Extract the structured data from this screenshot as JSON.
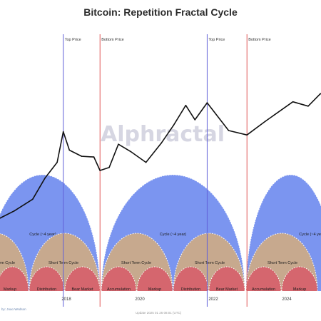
{
  "chart_data": {
    "type": "line",
    "title": "Bitcoin: Repetition Fractal Cycle",
    "x_ticks": [
      "2018",
      "2020",
      "2022",
      "2024"
    ],
    "log_scale": true,
    "grid": false,
    "price_series": {
      "x": [
        "2016-02",
        "2016-08",
        "2017-02",
        "2017-06",
        "2017-10",
        "2017-12",
        "2018-02",
        "2018-06",
        "2018-10",
        "2018-12",
        "2019-03",
        "2019-06",
        "2019-10",
        "2020-03",
        "2020-08",
        "2020-12",
        "2021-04",
        "2021-07",
        "2021-11",
        "2022-06",
        "2022-12",
        "2023-06",
        "2024-03",
        "2024-08",
        "2024-12",
        "2025-03"
      ],
      "y": [
        400,
        600,
        1000,
        2500,
        5000,
        19000,
        8500,
        6500,
        6300,
        3500,
        4000,
        11000,
        8000,
        5000,
        11500,
        25000,
        60000,
        32000,
        67000,
        20000,
        16500,
        30000,
        70000,
        58000,
        100000,
        85000
      ]
    },
    "vertical_markers": [
      {
        "label": "Top Price",
        "date": "2017-12",
        "color": "#6060d8"
      },
      {
        "label": "Bottom Price",
        "date": "2018-12",
        "color": "#e05858"
      },
      {
        "label": "Top Price",
        "date": "2021-11",
        "color": "#6060d8"
      },
      {
        "label": "Bottom Price",
        "date": "2022-12",
        "color": "#e05858"
      }
    ],
    "cycle_labels": [
      "Cycle (~4 year)",
      "Cycle (~4 year)",
      "Cycle (~4 year)"
    ],
    "short_cycle_labels": [
      "Short Term Cycle",
      "Short Term Cycle",
      "Short Term Cycle",
      "Short Term Cycle",
      "Short Term Cycle"
    ],
    "phase_labels": [
      "Markup",
      "Distribution",
      "Bear Market",
      "Accumulation",
      "Markup",
      "Distribution",
      "Bear Market",
      "Accumulation",
      "Markup"
    ],
    "colors": {
      "price": "#111111",
      "long_cycle": "#7b95f0",
      "short_cycle": "#c7a98e",
      "phase": "#d5666e",
      "arc_dots": "#ffffff",
      "tick_text": "#333333",
      "watermark": "#c9c9d9"
    },
    "watermark": "Alphractal"
  },
  "footer": {
    "credit": "by: Joao Wedson",
    "update": "Update 2025 01 26 08:01 (UTC)"
  }
}
